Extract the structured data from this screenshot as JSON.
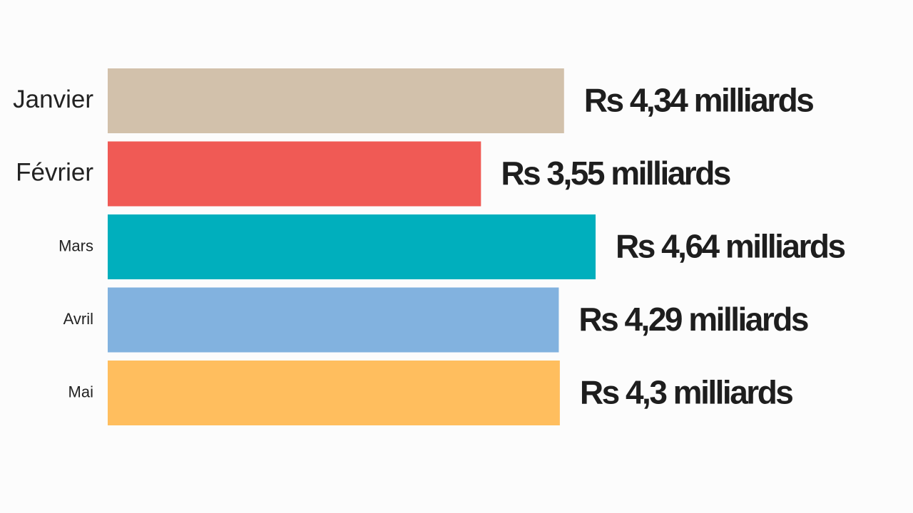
{
  "chart_data": {
    "type": "hbar",
    "categories": [
      "Janvier",
      "Février",
      "Mars",
      "Avril",
      "Mai"
    ],
    "values": [
      4.34,
      3.55,
      4.64,
      4.29,
      4.3
    ],
    "value_labels": [
      "Rs 4,34 milliards",
      "Rs 3,55 milliards",
      "Rs 4,64 milliards",
      "Rs 4,29 milliards",
      "Rs 4,3 milliards"
    ],
    "colors": [
      "#d2c1ab",
      "#f05a55",
      "#00afbd",
      "#82b2df",
      "#ffbe5e"
    ]
  }
}
